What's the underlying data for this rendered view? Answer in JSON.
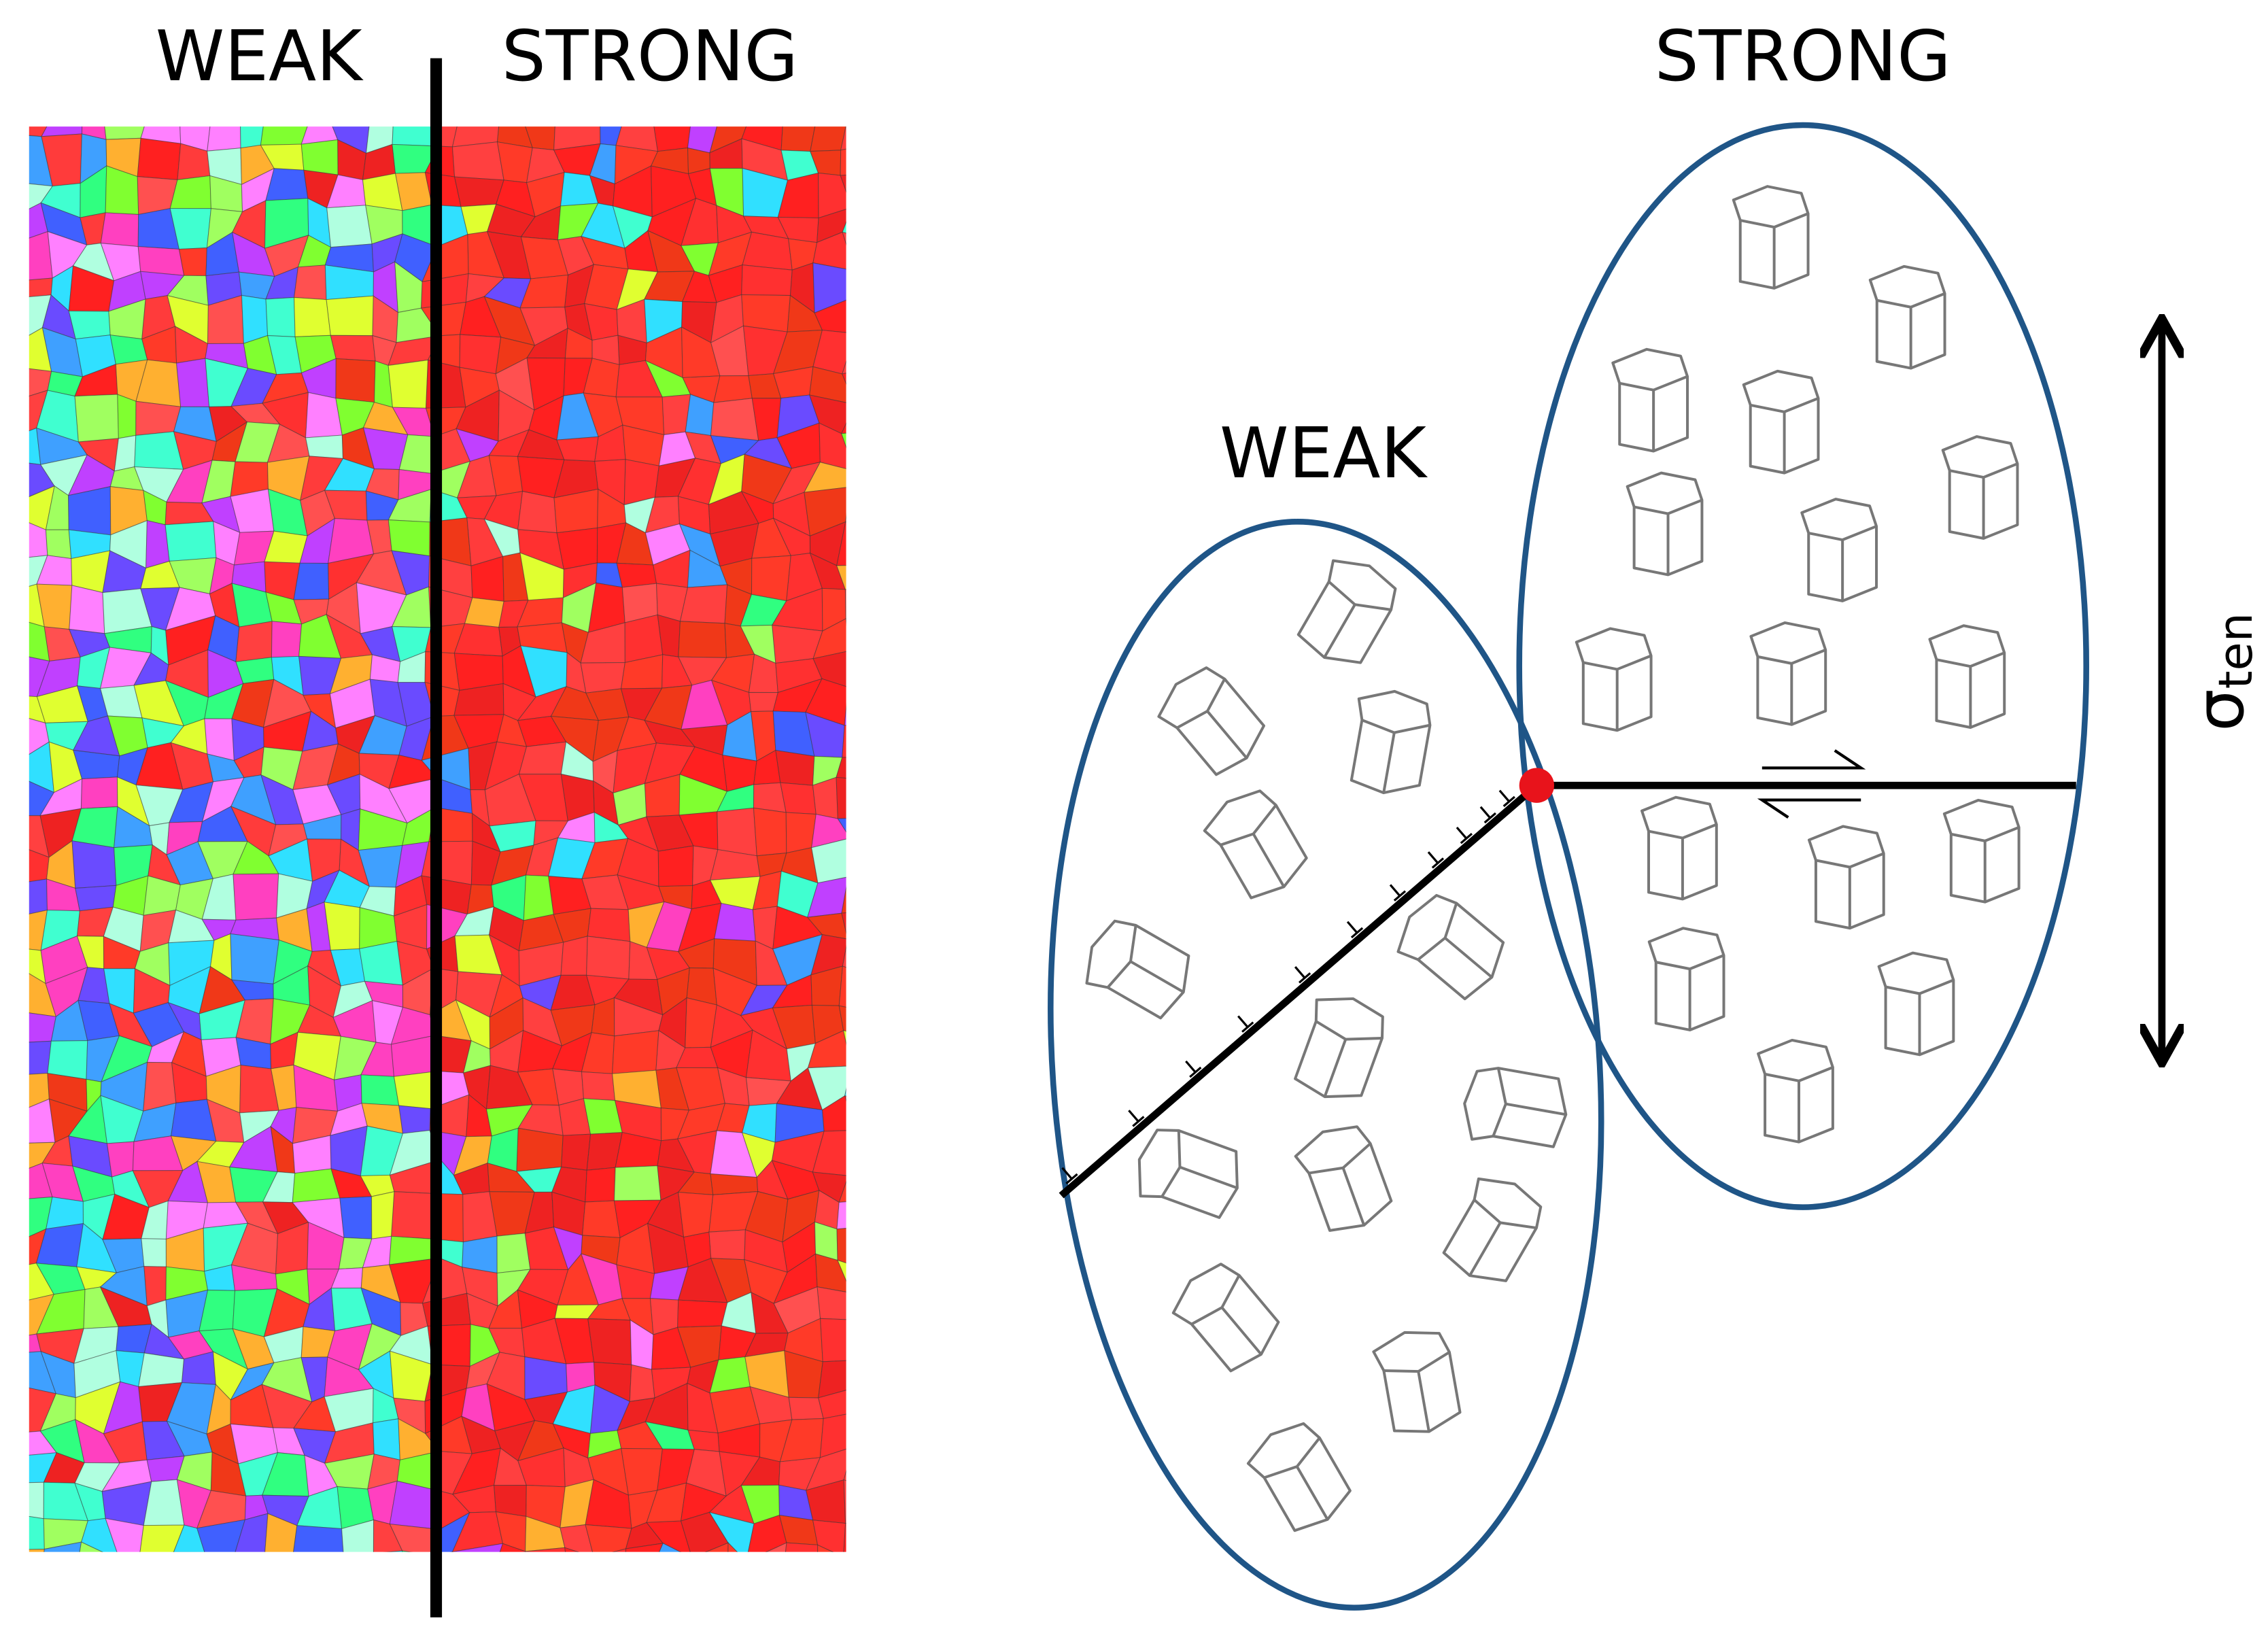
{
  "left_panel": {
    "weak_label": "WEAK",
    "strong_label": "STRONG"
  },
  "right_panel": {
    "strong_label": "STRONG",
    "weak_label": "WEAK",
    "stress_symbol": "σ",
    "stress_subscript": "ten"
  }
}
